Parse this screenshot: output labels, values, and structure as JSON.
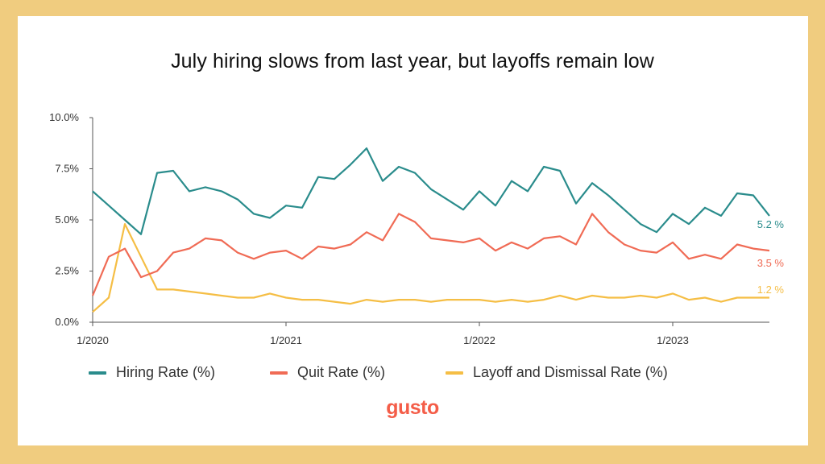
{
  "title": "July hiring slows from last year, but layoffs remain low",
  "logo_text": "gusto",
  "chart_data": {
    "type": "line",
    "title": "July hiring slows from last year, but layoffs remain low",
    "xlabel": "",
    "ylabel": "",
    "ylim": [
      0,
      10
    ],
    "yticks": [
      "0.0%",
      "2.5%",
      "5.0%",
      "7.5%",
      "10.0%"
    ],
    "ytick_values": [
      0,
      2.5,
      5,
      7.5,
      10
    ],
    "xticks": [
      "1/2020",
      "1/2021",
      "1/2022",
      "1/2023"
    ],
    "xtick_index": [
      0,
      12,
      24,
      36
    ],
    "x_count": 43,
    "legend_position": "bottom",
    "grid": false,
    "series": [
      {
        "name": "Hiring Rate (%)",
        "color": "#2A8C8C",
        "end_label": "5.2 %",
        "values": [
          6.4,
          5.7,
          5.0,
          4.3,
          7.3,
          7.4,
          6.4,
          6.6,
          6.4,
          6.0,
          5.3,
          5.1,
          5.7,
          5.6,
          7.1,
          7.0,
          7.7,
          8.5,
          6.9,
          7.6,
          7.3,
          6.5,
          6.0,
          5.5,
          6.4,
          5.7,
          6.9,
          6.4,
          7.6,
          7.4,
          5.8,
          6.8,
          6.2,
          5.5,
          4.8,
          4.4,
          5.3,
          4.8,
          5.6,
          5.2,
          6.3,
          6.2,
          5.2
        ]
      },
      {
        "name": "Quit Rate (%)",
        "color": "#F06B55",
        "end_label": "3.5 %",
        "values": [
          1.3,
          3.2,
          3.6,
          2.2,
          2.5,
          3.4,
          3.6,
          4.1,
          4.0,
          3.4,
          3.1,
          3.4,
          3.5,
          3.1,
          3.7,
          3.6,
          3.8,
          4.4,
          4.0,
          5.3,
          4.9,
          4.1,
          4.0,
          3.9,
          4.1,
          3.5,
          3.9,
          3.6,
          4.1,
          4.2,
          3.8,
          5.3,
          4.4,
          3.8,
          3.5,
          3.4,
          3.9,
          3.1,
          3.3,
          3.1,
          3.8,
          3.6,
          3.5
        ]
      },
      {
        "name": "Layoff and Dismissal Rate (%)",
        "color": "#F5BE45",
        "end_label": "1.2 %",
        "values": [
          0.5,
          1.2,
          4.8,
          3.2,
          1.6,
          1.6,
          1.5,
          1.4,
          1.3,
          1.2,
          1.2,
          1.4,
          1.2,
          1.1,
          1.1,
          1.0,
          0.9,
          1.1,
          1.0,
          1.1,
          1.1,
          1.0,
          1.1,
          1.1,
          1.1,
          1.0,
          1.1,
          1.0,
          1.1,
          1.3,
          1.1,
          1.3,
          1.2,
          1.2,
          1.3,
          1.2,
          1.4,
          1.1,
          1.2,
          1.0,
          1.2,
          1.2,
          1.2
        ]
      }
    ]
  }
}
